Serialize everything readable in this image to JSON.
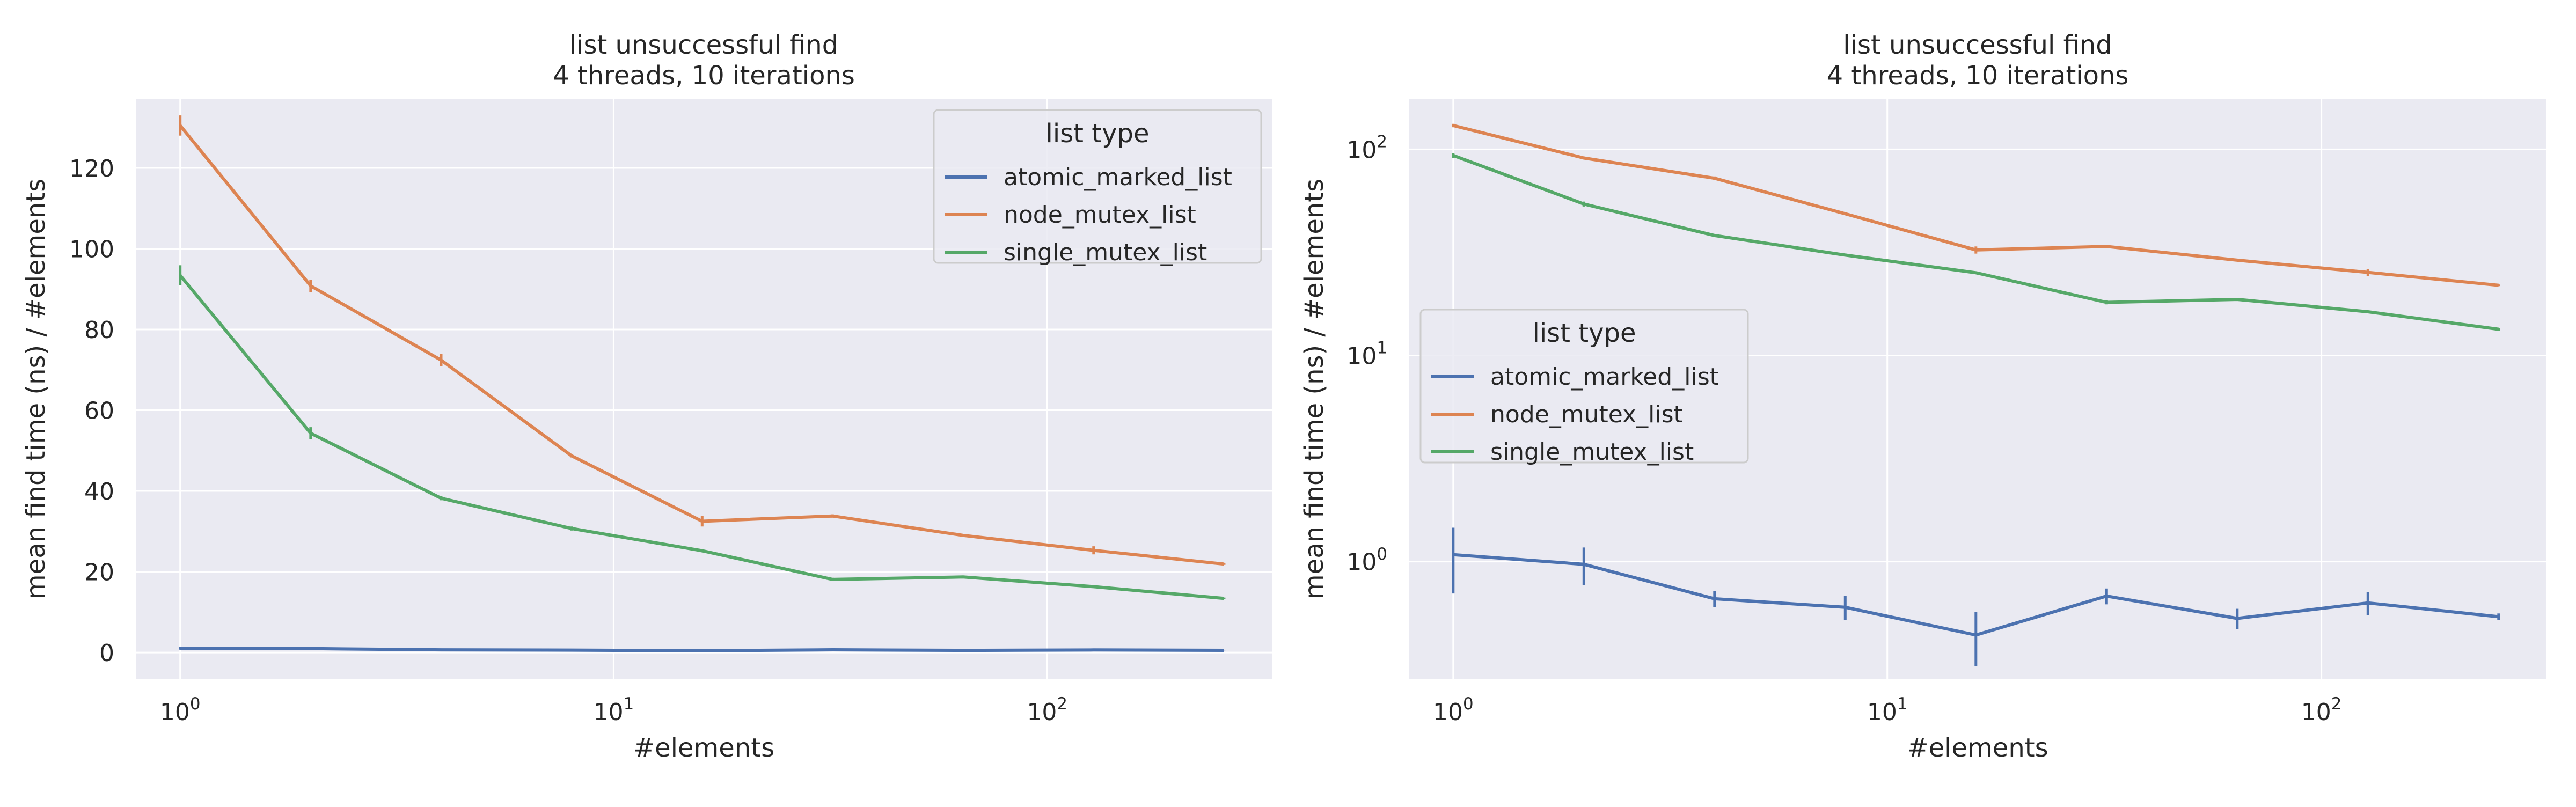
{
  "colors": {
    "background": "#ffffff",
    "plot_bg": "#eaeaf2",
    "grid": "#ffffff",
    "text": "#262626",
    "atomic_marked_list": "#4c72b0",
    "node_mutex_list": "#dd8452",
    "single_mutex_list": "#55a868"
  },
  "chart_data": [
    {
      "type": "line",
      "title": "list unsuccessful find",
      "subtitle": "4 threads, 10 iterations",
      "xlabel": "#elements",
      "ylabel": "mean find time (ns) / #elements",
      "xscale": "log",
      "yscale": "linear",
      "xlim": [
        0.79,
        330
      ],
      "ylim": [
        -6.5,
        137
      ],
      "xticks": [
        1,
        10,
        100
      ],
      "xtick_labels": [
        {
          "base": "10",
          "exp": "0"
        },
        {
          "base": "10",
          "exp": "1"
        },
        {
          "base": "10",
          "exp": "2"
        }
      ],
      "yticks": [
        0,
        20,
        40,
        60,
        80,
        100,
        120
      ],
      "ytick_labels": [
        "0",
        "20",
        "40",
        "60",
        "80",
        "100",
        "120"
      ],
      "grid": true,
      "legend": {
        "title": "list type",
        "position": "top-right"
      },
      "x": [
        1,
        2,
        4,
        8,
        16,
        32,
        64,
        128,
        256
      ],
      "series": [
        {
          "name": "atomic_marked_list",
          "values": [
            1.08,
            0.97,
            0.66,
            0.6,
            0.44,
            0.68,
            0.53,
            0.63,
            0.54
          ],
          "errors": [
            0.38,
            0.2,
            0.06,
            0.08,
            0.13,
            0.06,
            0.06,
            0.08,
            0.02
          ]
        },
        {
          "name": "node_mutex_list",
          "values": [
            130.5,
            90.8,
            72.4,
            48.7,
            32.5,
            33.8,
            29.0,
            25.3,
            21.9
          ],
          "errors": [
            2.5,
            1.5,
            1.5,
            0.4,
            1.3,
            0.4,
            0.2,
            1.0,
            0.2
          ]
        },
        {
          "name": "single_mutex_list",
          "values": [
            93.4,
            54.3,
            38.2,
            30.7,
            25.2,
            18.1,
            18.7,
            16.3,
            13.4
          ],
          "errors": [
            2.5,
            1.5,
            0.5,
            0.5,
            0.4,
            0.4,
            0.3,
            0.2,
            0.2
          ]
        }
      ]
    },
    {
      "type": "line",
      "title": "list unsuccessful find",
      "subtitle": "4 threads, 10 iterations",
      "xlabel": "#elements",
      "ylabel": "mean find time (ns) / #elements",
      "xscale": "log",
      "yscale": "log",
      "xlim": [
        0.79,
        330
      ],
      "ylim": [
        0.27,
        175
      ],
      "xticks": [
        1,
        10,
        100
      ],
      "xtick_labels": [
        {
          "base": "10",
          "exp": "0"
        },
        {
          "base": "10",
          "exp": "1"
        },
        {
          "base": "10",
          "exp": "2"
        }
      ],
      "yticks": [
        1,
        10,
        100
      ],
      "ytick_labels": [
        {
          "base": "10",
          "exp": "0"
        },
        {
          "base": "10",
          "exp": "1"
        },
        {
          "base": "10",
          "exp": "2"
        }
      ],
      "grid": true,
      "legend": {
        "title": "list type",
        "position": "center-left"
      },
      "x": [
        1,
        2,
        4,
        8,
        16,
        32,
        64,
        128,
        256
      ],
      "series": [
        {
          "name": "atomic_marked_list",
          "values": [
            1.08,
            0.97,
            0.66,
            0.6,
            0.44,
            0.68,
            0.53,
            0.63,
            0.54
          ],
          "errors": [
            0.38,
            0.2,
            0.06,
            0.08,
            0.13,
            0.06,
            0.06,
            0.08,
            0.02
          ]
        },
        {
          "name": "node_mutex_list",
          "values": [
            130.5,
            90.8,
            72.4,
            48.7,
            32.5,
            33.8,
            29.0,
            25.3,
            21.9
          ],
          "errors": [
            2.5,
            1.5,
            1.5,
            0.4,
            1.3,
            0.4,
            0.2,
            1.0,
            0.2
          ]
        },
        {
          "name": "single_mutex_list",
          "values": [
            93.4,
            54.3,
            38.2,
            30.7,
            25.2,
            18.1,
            18.7,
            16.3,
            13.4
          ],
          "errors": [
            2.5,
            1.5,
            0.5,
            0.5,
            0.4,
            0.4,
            0.3,
            0.2,
            0.2
          ]
        }
      ]
    }
  ]
}
